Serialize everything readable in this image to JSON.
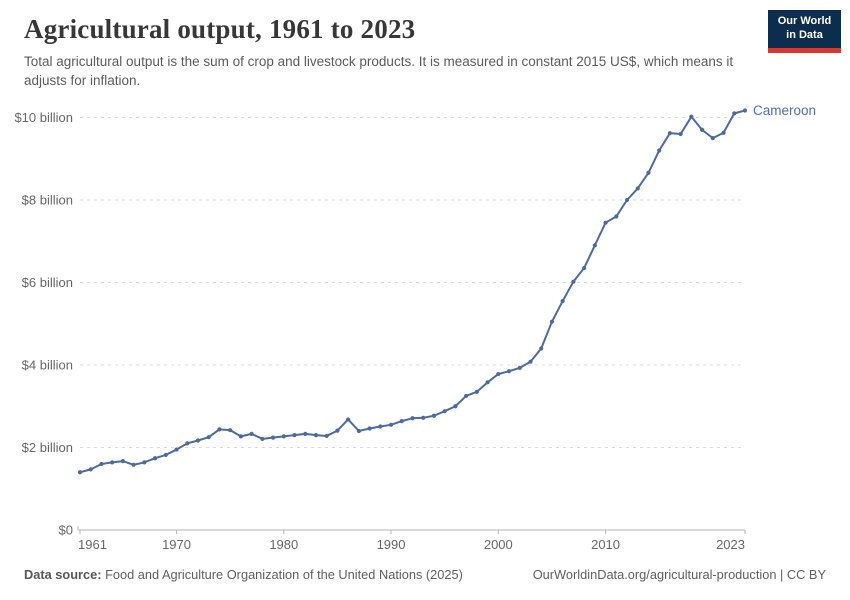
{
  "header": {
    "title": "Agricultural output, 1961 to 2023",
    "subtitle": "Total agricultural output is the sum of crop and livestock products. It is measured in constant 2015 US$, which means it adjusts for inflation.",
    "logo": {
      "line1": "Our World",
      "line2": "in Data",
      "bg_color": "#0d2d4e",
      "accent_color": "#d73832"
    }
  },
  "chart_data": {
    "type": "line",
    "title": "Agricultural output, 1961 to 2023",
    "xlabel": "",
    "ylabel": "",
    "xlim": [
      1961,
      2023
    ],
    "ylim": [
      0,
      10.4
    ],
    "grid": "horizontal-dashed",
    "legend_position": "end-of-line-label",
    "x_ticks": [
      1961,
      1970,
      1980,
      1990,
      2000,
      2010,
      2023
    ],
    "y_ticks": [
      0,
      2,
      4,
      6,
      8,
      10
    ],
    "y_tick_labels": [
      "$0",
      "$2 billion",
      "$4 billion",
      "$6 billion",
      "$8 billion",
      "$10 billion"
    ],
    "series": [
      {
        "name": "Cameroon",
        "color": "#4c6a9c",
        "label_color": "#4e6fae",
        "x": [
          1961,
          1962,
          1963,
          1964,
          1965,
          1966,
          1967,
          1968,
          1969,
          1970,
          1971,
          1972,
          1973,
          1974,
          1975,
          1976,
          1977,
          1978,
          1979,
          1980,
          1981,
          1982,
          1983,
          1984,
          1985,
          1986,
          1987,
          1988,
          1989,
          1990,
          1991,
          1992,
          1993,
          1994,
          1995,
          1996,
          1997,
          1998,
          1999,
          2000,
          2001,
          2002,
          2003,
          2004,
          2005,
          2006,
          2007,
          2008,
          2009,
          2010,
          2011,
          2012,
          2013,
          2014,
          2015,
          2016,
          2017,
          2018,
          2019,
          2020,
          2021,
          2022,
          2023
        ],
        "values": [
          1.4,
          1.47,
          1.6,
          1.64,
          1.67,
          1.58,
          1.64,
          1.74,
          1.82,
          1.95,
          2.1,
          2.17,
          2.25,
          2.44,
          2.42,
          2.27,
          2.33,
          2.21,
          2.24,
          2.27,
          2.3,
          2.33,
          2.3,
          2.28,
          2.41,
          2.68,
          2.4,
          2.46,
          2.51,
          2.55,
          2.64,
          2.71,
          2.72,
          2.77,
          2.88,
          3.0,
          3.25,
          3.35,
          3.58,
          3.78,
          3.85,
          3.93,
          4.08,
          4.4,
          5.05,
          5.55,
          6.02,
          6.35,
          6.9,
          7.45,
          7.6,
          8.0,
          8.28,
          8.66,
          9.2,
          9.62,
          9.6,
          10.02,
          9.7,
          9.5,
          9.63,
          10.1,
          10.17
        ],
        "unit": "billion constant 2015 US$"
      }
    ]
  },
  "footer": {
    "source_label": "Data source:",
    "source_text": " Food and Agriculture Organization of the United Nations (2025)",
    "link_text": "OurWorldinData.org/agricultural-production | CC BY"
  }
}
